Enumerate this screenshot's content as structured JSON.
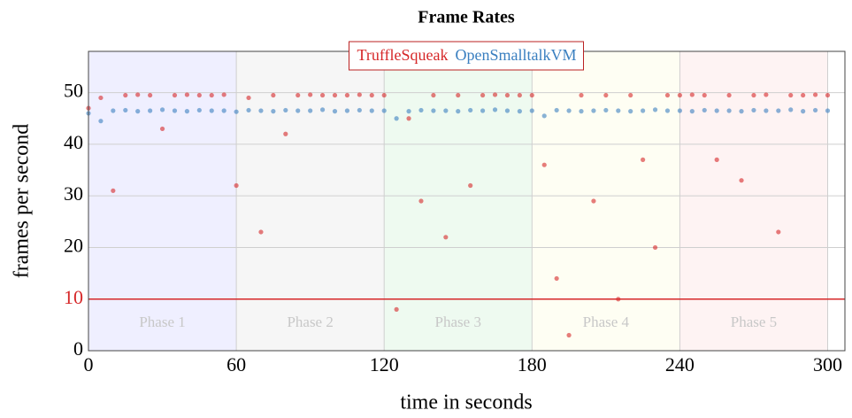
{
  "chart_data": {
    "type": "scatter",
    "title": "Frame Rates",
    "x_label": "time in seconds",
    "y_label": "frames per second",
    "xlim": [
      0,
      307
    ],
    "ylim": [
      0,
      58
    ],
    "xticks": [
      0,
      60,
      120,
      180,
      240,
      300
    ],
    "yticks": [
      0,
      10,
      20,
      30,
      40,
      50
    ],
    "grid": true,
    "legend": "top",
    "hline": {
      "value": 10,
      "color": "#d62728"
    },
    "phases": [
      {
        "label": "Phase 1",
        "start": 0,
        "end": 60,
        "color": "#3030ff"
      },
      {
        "label": "Phase 2",
        "start": 60,
        "end": 120,
        "color": "#909090"
      },
      {
        "label": "Phase 3",
        "start": 120,
        "end": 180,
        "color": "#20c040"
      },
      {
        "label": "Phase 4",
        "start": 180,
        "end": 240,
        "color": "#f0f060"
      },
      {
        "label": "Phase 5",
        "start": 240,
        "end": 300,
        "color": "#f06060"
      }
    ],
    "series": [
      {
        "name": "TruffleSqueak",
        "color": "#d62728",
        "x": [
          0,
          5,
          10,
          15,
          20,
          25,
          30,
          35,
          40,
          45,
          50,
          55,
          60,
          65,
          70,
          75,
          80,
          85,
          90,
          95,
          100,
          105,
          110,
          115,
          120,
          125,
          130,
          135,
          140,
          145,
          150,
          155,
          160,
          165,
          170,
          175,
          180,
          185,
          190,
          195,
          200,
          205,
          210,
          215,
          220,
          225,
          230,
          235,
          240,
          245,
          250,
          255,
          260,
          265,
          270,
          275,
          280,
          285,
          290,
          295,
          300
        ],
        "values": [
          47,
          49,
          31,
          49.5,
          49.6,
          49.5,
          43,
          49.5,
          49.6,
          49.5,
          49.5,
          49.6,
          32,
          49,
          23,
          49.5,
          42,
          49.5,
          49.6,
          49.5,
          49.5,
          49.5,
          49.6,
          49.5,
          49.5,
          8,
          45,
          29,
          49.5,
          22,
          49.5,
          32,
          49.5,
          49.6,
          49.5,
          49.5,
          49.5,
          36,
          14,
          3,
          49.5,
          29,
          49.5,
          10,
          49.5,
          37,
          20,
          49.5,
          49.5,
          49.6,
          49.5,
          37,
          49.5,
          33,
          49.5,
          49.6,
          23,
          49.5,
          49.5,
          49.6,
          49.5
        ]
      },
      {
        "name": "OpenSmalltalkVM",
        "color": "#3a7fc0",
        "x": [
          0,
          5,
          10,
          15,
          20,
          25,
          30,
          35,
          40,
          45,
          50,
          55,
          60,
          65,
          70,
          75,
          80,
          85,
          90,
          95,
          100,
          105,
          110,
          115,
          120,
          125,
          130,
          135,
          140,
          145,
          150,
          155,
          160,
          165,
          170,
          175,
          180,
          185,
          190,
          195,
          200,
          205,
          210,
          215,
          220,
          225,
          230,
          235,
          240,
          245,
          250,
          255,
          260,
          265,
          270,
          275,
          280,
          285,
          290,
          295,
          300
        ],
        "values": [
          46,
          44.5,
          46.5,
          46.6,
          46.4,
          46.5,
          46.7,
          46.5,
          46.4,
          46.6,
          46.5,
          46.5,
          46.3,
          46.6,
          46.5,
          46.4,
          46.6,
          46.5,
          46.5,
          46.7,
          46.4,
          46.5,
          46.6,
          46.5,
          46.5,
          45,
          46.4,
          46.6,
          46.5,
          46.5,
          46.4,
          46.6,
          46.5,
          46.7,
          46.5,
          46.4,
          46.5,
          45.5,
          46.6,
          46.5,
          46.4,
          46.5,
          46.6,
          46.5,
          46.4,
          46.5,
          46.7,
          46.5,
          46.5,
          46.4,
          46.6,
          46.5,
          46.5,
          46.4,
          46.6,
          46.5,
          46.5,
          46.7,
          46.4,
          46.6,
          46.5
        ]
      }
    ]
  }
}
